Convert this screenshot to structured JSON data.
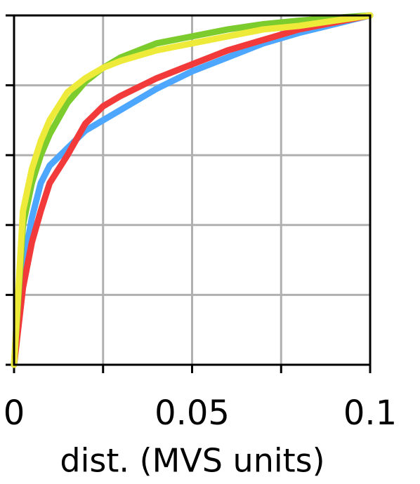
{
  "chart_data": {
    "type": "line",
    "x": [
      0,
      0.0025,
      0.005,
      0.0075,
      0.01,
      0.015,
      0.02,
      0.025,
      0.03,
      0.04,
      0.05,
      0.06,
      0.07,
      0.08,
      0.09,
      0.1
    ],
    "series": [
      {
        "color": "#4da6ff",
        "values": [
          0,
          0.28,
          0.42,
          0.52,
          0.57,
          0.62,
          0.67,
          0.7,
          0.73,
          0.79,
          0.84,
          0.88,
          0.92,
          0.95,
          0.975,
          1
        ]
      },
      {
        "color": "#f23a3a",
        "values": [
          0,
          0.22,
          0.35,
          0.44,
          0.52,
          0.6,
          0.69,
          0.74,
          0.77,
          0.82,
          0.86,
          0.9,
          0.93,
          0.96,
          0.98,
          1
        ]
      },
      {
        "color": "#7ccc2e",
        "values": [
          0,
          0.4,
          0.52,
          0.6,
          0.66,
          0.75,
          0.81,
          0.85,
          0.88,
          0.92,
          0.94,
          0.96,
          0.975,
          0.985,
          0.993,
          1
        ]
      },
      {
        "color": "#eeea3a",
        "values": [
          0,
          0.44,
          0.56,
          0.64,
          0.7,
          0.78,
          0.82,
          0.85,
          0.87,
          0.9,
          0.92,
          0.94,
          0.96,
          0.97,
          0.985,
          1
        ]
      }
    ],
    "x_label": "dist. (MVS units)",
    "xlim": [
      0,
      0.1
    ],
    "ylim": [
      0,
      1
    ],
    "xticks": [
      0,
      0.05,
      0.1
    ],
    "xminorticks": [
      0.025,
      0.075
    ],
    "yticks": [
      0,
      0.2,
      0.4,
      0.6,
      0.8,
      1
    ],
    "ytick_labels": false,
    "grid": true
  }
}
